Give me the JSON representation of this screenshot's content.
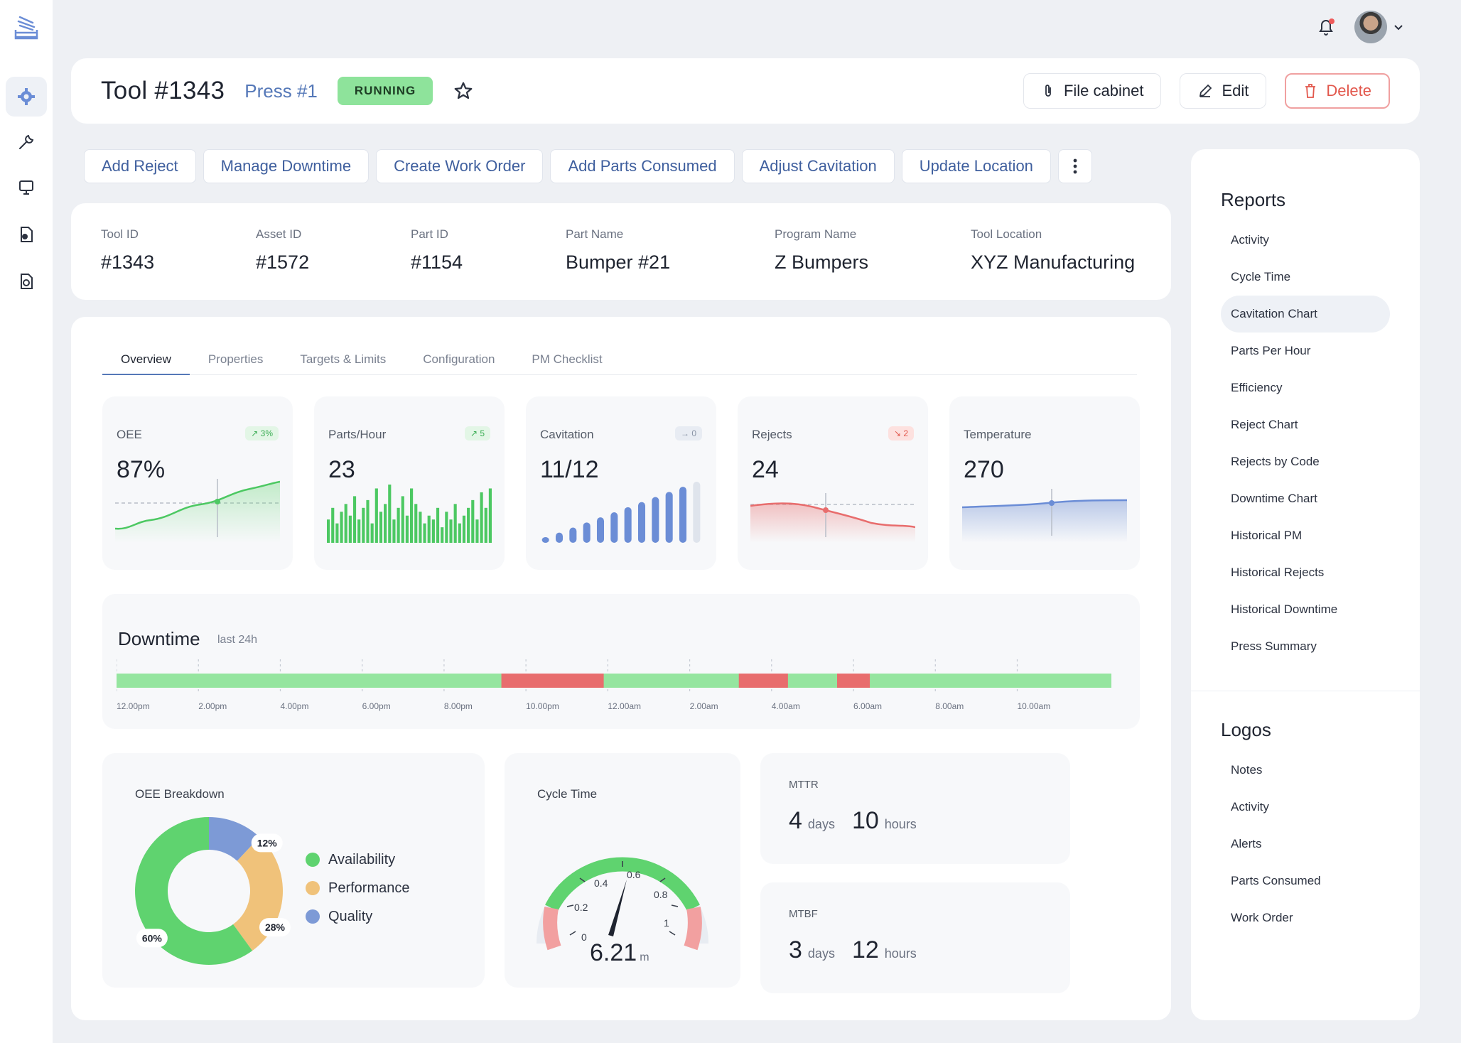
{
  "sidebar": {
    "items": [
      {
        "icon": "gear-icon",
        "active": true
      },
      {
        "icon": "wrench-icon",
        "active": false
      },
      {
        "icon": "monitor-icon",
        "active": false
      },
      {
        "icon": "document-icon",
        "active": false
      },
      {
        "icon": "document-settings-icon",
        "active": false
      }
    ]
  },
  "header": {
    "title": "Tool #1343",
    "press": "Press #1",
    "status": "RUNNING",
    "file_cabinet": "File cabinet",
    "edit": "Edit",
    "delete": "Delete"
  },
  "actions": [
    "Add Reject",
    "Manage Downtime",
    "Create Work Order",
    "Add Parts Consumed",
    "Adjust Cavitation",
    "Update Location"
  ],
  "info": [
    {
      "label": "Tool ID",
      "value": "#1343"
    },
    {
      "label": "Asset ID",
      "value": "#1572"
    },
    {
      "label": "Part ID",
      "value": "#1154"
    },
    {
      "label": "Part Name",
      "value": "Bumper #21"
    },
    {
      "label": "Program Name",
      "value": "Z Bumpers"
    },
    {
      "label": "Tool Location",
      "value": "XYZ Manufacturing"
    }
  ],
  "tabs": [
    "Overview",
    "Properties",
    "Targets & Limits",
    "Configuration",
    "PM Checklist"
  ],
  "kpis": [
    {
      "label": "OEE",
      "value": "87%",
      "badge": "↗ 3%",
      "badge_type": "up"
    },
    {
      "label": "Parts/Hour",
      "value": "23",
      "badge": "↗ 5",
      "badge_type": "up"
    },
    {
      "label": "Cavitation",
      "value": "11/12",
      "badge": "→ 0",
      "badge_type": "flat"
    },
    {
      "label": "Rejects",
      "value": "24",
      "badge": "↘ 2",
      "badge_type": "down"
    },
    {
      "label": "Temperature",
      "value": "270",
      "badge": "",
      "badge_type": ""
    }
  ],
  "downtime": {
    "title": "Downtime",
    "subtitle": "last 24h",
    "ticks": [
      "12.00pm",
      "2.00pm",
      "4.00pm",
      "6.00pm",
      "8.00pm",
      "10.00pm",
      "12.00am",
      "2.00am",
      "4.00am",
      "6.00am",
      "8.00am",
      "10.00am"
    ],
    "down_segments_hours": [
      [
        9.4,
        11.9
      ],
      [
        15.2,
        16.4
      ],
      [
        17.6,
        18.4
      ]
    ],
    "total_hours": 24.3,
    "colors": {
      "up": "#95e59f",
      "down": "#e86d6d"
    }
  },
  "oee_breakdown": {
    "title": "OEE Breakdown",
    "legend": [
      "Availability",
      "Performance",
      "Quality"
    ],
    "labels": [
      "60%",
      "28%",
      "12%"
    ]
  },
  "cycle_time": {
    "title": "Cycle Time",
    "value": "6.21",
    "unit": "m",
    "ticks": [
      "0",
      "0.2",
      "0.4",
      "0.6",
      "0.8",
      "1"
    ]
  },
  "mttr": {
    "label": "MTTR",
    "days": "4",
    "days_unit": "days",
    "hours": "10",
    "hours_unit": "hours"
  },
  "mtbf": {
    "label": "MTBF",
    "days": "3",
    "days_unit": "days",
    "hours": "12",
    "hours_unit": "hours"
  },
  "reports": {
    "title": "Reports",
    "items": [
      "Activity",
      "Cycle Time",
      "Cavitation Chart",
      "Parts Per Hour",
      "Efficiency",
      "Reject Chart",
      "Rejects by Code",
      "Downtime Chart",
      "Historical PM",
      "Historical Rejects",
      "Historical Downtime",
      "Press Summary"
    ],
    "active": "Cavitation Chart"
  },
  "logos": {
    "title": "Logos",
    "items": [
      "Notes",
      "Activity",
      "Alerts",
      "Parts Consumed",
      "Work Order"
    ]
  },
  "chart_data": [
    {
      "type": "pie",
      "title": "OEE Breakdown",
      "categories": [
        "Availability",
        "Performance",
        "Quality"
      ],
      "values": [
        60,
        28,
        12
      ],
      "colors": [
        "#5fd36f",
        "#f0c27a",
        "#7d9ad6"
      ]
    },
    {
      "type": "bar",
      "title": "Parts/Hour",
      "values": [
        6,
        9,
        5,
        8,
        10,
        7,
        12,
        6,
        9,
        11,
        5,
        14,
        8,
        10,
        15,
        6,
        9,
        12,
        7,
        14,
        10,
        8,
        5,
        7,
        6,
        9,
        4,
        8,
        6,
        10,
        5,
        7,
        9,
        11,
        6,
        13,
        9,
        14
      ]
    },
    {
      "type": "bar",
      "title": "Cavitation",
      "values": [
        1,
        2,
        3,
        4,
        5,
        6,
        7,
        8,
        9,
        10,
        11,
        12
      ],
      "highlight": 11
    }
  ]
}
